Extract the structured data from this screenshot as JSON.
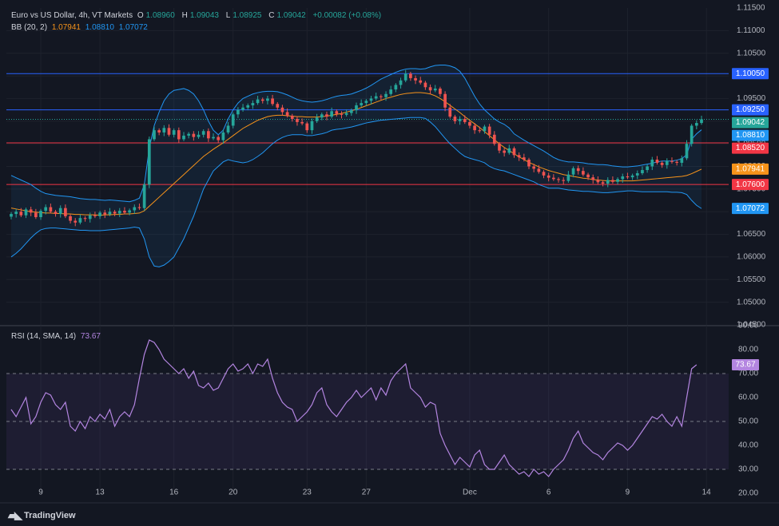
{
  "header": {
    "symbol": "Euro vs US Dollar, 4h, VT Markets",
    "o_label": "O",
    "o_value": "1.08960",
    "h_label": "H",
    "h_value": "1.09043",
    "l_label": "L",
    "l_value": "1.08925",
    "c_label": "C",
    "c_value": "1.09042",
    "change": "+0.00082 (+0.08%)"
  },
  "bb_legend": {
    "name": "BB (20, 2)",
    "basis": "1.07941",
    "upper": "1.08810",
    "lower": "1.07072"
  },
  "rsi_legend": {
    "name": "RSI (14, SMA, 14)",
    "value": "73.67"
  },
  "brand": "TradingView",
  "colors": {
    "bg": "#131722",
    "up": "#26a69a",
    "down": "#ef5350",
    "basis": "#f7931a",
    "band": "#2196f3",
    "rsi": "#b385e0",
    "hline_blue": "#2962ff",
    "hline_red": "#f23645"
  },
  "chart_data": [
    {
      "type": "candlestick",
      "ylim": [
        1.045,
        1.115
      ],
      "y_ticks": [
        "1.11500",
        "1.11000",
        "1.10500",
        "1.10000",
        "1.09500",
        "1.09000",
        "1.08500",
        "1.08000",
        "1.07500",
        "1.07000",
        "1.06500",
        "1.06000",
        "1.05500",
        "1.05000",
        "1.04500"
      ],
      "x_ticks": [
        {
          "label": "9",
          "i": 6
        },
        {
          "label": "13",
          "i": 18
        },
        {
          "label": "16",
          "i": 33
        },
        {
          "label": "20",
          "i": 45
        },
        {
          "label": "23",
          "i": 60
        },
        {
          "label": "27",
          "i": 72
        },
        {
          "label": "Dec",
          "i": 93
        },
        {
          "label": "6",
          "i": 109
        },
        {
          "label": "9",
          "i": 125
        },
        {
          "label": "14",
          "i": 141
        }
      ],
      "horizontal_lines": [
        {
          "value": 1.1005,
          "label": "1.10050",
          "color": "#2962ff"
        },
        {
          "value": 1.0925,
          "label": "1.09250",
          "color": "#2962ff"
        },
        {
          "value": 1.0852,
          "label": "1.08520",
          "color": "#f23645"
        },
        {
          "value": 1.076,
          "label": "1.07600",
          "color": "#f23645"
        }
      ],
      "price_labels": [
        {
          "value": 1.1005,
          "text": "1.10050",
          "bg": "#2962ff",
          "order": 0
        },
        {
          "value": 1.0925,
          "text": "1.09250",
          "bg": "#2962ff",
          "order": 1
        },
        {
          "value": 1.09042,
          "text": "1.09042",
          "bg": "#26a69a",
          "order": 2
        },
        {
          "value": 1.0881,
          "text": "1.08810",
          "bg": "#2196f3",
          "order": 3
        },
        {
          "value": 1.0852,
          "text": "1.08520",
          "bg": "#f23645",
          "order": 4
        },
        {
          "value": 1.07941,
          "text": "1.07941",
          "bg": "#f7931a",
          "order": 5
        },
        {
          "value": 1.076,
          "text": "1.07600",
          "bg": "#f23645",
          "order": 6
        },
        {
          "value": 1.07072,
          "text": "1.07072",
          "bg": "#2196f3",
          "order": 7
        }
      ],
      "closes": [
        1.0695,
        1.07,
        1.0692,
        1.0705,
        1.0698,
        1.0688,
        1.0702,
        1.071,
        1.07,
        1.0695,
        1.0708,
        1.069,
        1.068,
        1.0676,
        1.0686,
        1.0684,
        1.0692,
        1.069,
        1.0698,
        1.0694,
        1.07,
        1.0696,
        1.0702,
        1.0698,
        1.0703,
        1.071,
        1.0708,
        1.076,
        1.086,
        1.088,
        1.0875,
        1.0885,
        1.087,
        1.088,
        1.086,
        1.0868,
        1.0872,
        1.0865,
        1.087,
        1.0878,
        1.0862,
        1.0865,
        1.0858,
        1.0875,
        1.089,
        1.0915,
        1.0925,
        1.093,
        1.0935,
        1.094,
        1.0948,
        1.0945,
        1.095,
        1.0938,
        1.093,
        1.092,
        1.0912,
        1.0905,
        1.0898,
        1.0895,
        1.088,
        1.09,
        1.0908,
        1.0915,
        1.091,
        1.0922,
        1.0916,
        1.0914,
        1.0918,
        1.0924,
        1.0935,
        1.094,
        1.0945,
        1.095,
        1.0955,
        1.0953,
        1.096,
        1.097,
        1.098,
        1.099,
        1.1005,
        1.0995,
        1.099,
        1.0985,
        1.0975,
        1.0968,
        1.0972,
        1.096,
        1.093,
        1.091,
        1.09,
        1.0905,
        1.0898,
        1.089,
        1.088,
        1.0878,
        1.0888,
        1.087,
        1.085,
        1.0835,
        1.083,
        1.084,
        1.0825,
        1.082,
        1.0815,
        1.08,
        1.0795,
        1.0788,
        1.078,
        1.0775,
        1.0772,
        1.077,
        1.0768,
        1.0782,
        1.0796,
        1.079,
        1.0782,
        1.0776,
        1.077,
        1.0765,
        1.0762,
        1.077,
        1.0766,
        1.0772,
        1.0778,
        1.0776,
        1.078,
        1.0785,
        1.0792,
        1.08,
        1.0815,
        1.0808,
        1.0803,
        1.0812,
        1.081,
        1.0808,
        1.0818,
        1.085,
        1.089,
        1.0896,
        1.0904
      ],
      "bb_upper": [
        1.078,
        1.0775,
        1.077,
        1.0765,
        1.076,
        1.0752,
        1.0745,
        1.074,
        1.0738,
        1.0736,
        1.0735,
        1.0734,
        1.0733,
        1.0731,
        1.0729,
        1.0728,
        1.0727,
        1.0727,
        1.0726,
        1.0725,
        1.0726,
        1.0725,
        1.0724,
        1.0723,
        1.0722,
        1.0725,
        1.073,
        1.076,
        1.084,
        1.089,
        1.092,
        1.0945,
        1.096,
        1.0968,
        1.097,
        1.0972,
        1.0968,
        1.096,
        1.0945,
        1.0925,
        1.09,
        1.088,
        1.087,
        1.088,
        1.0905,
        1.0925,
        1.094,
        1.095,
        1.0955,
        1.096,
        1.0963,
        1.0965,
        1.0966,
        1.0966,
        1.0965,
        1.0962,
        1.0958,
        1.0953,
        1.0948,
        1.0945,
        1.0943,
        1.0942,
        1.0943,
        1.0945,
        1.0948,
        1.0952,
        1.0955,
        1.0957,
        1.0958,
        1.096,
        1.0964,
        1.0968,
        1.0973,
        1.0979,
        1.0986,
        1.0993,
        1.0998,
        1.1003,
        1.1008,
        1.1012,
        1.1015,
        1.1016,
        1.1016,
        1.1015,
        1.1016,
        1.102,
        1.1023,
        1.1024,
        1.1024,
        1.1022,
        1.1018,
        1.101,
        1.0995,
        1.0975,
        1.0955,
        1.0938,
        1.0925,
        1.0915,
        1.0905,
        1.0898,
        1.0893,
        1.0885,
        1.0872,
        1.0865,
        1.0858,
        1.0852,
        1.0846,
        1.084,
        1.0834,
        1.0827,
        1.082,
        1.0815,
        1.0812,
        1.081,
        1.081,
        1.0809,
        1.0808,
        1.0806,
        1.0805,
        1.0804,
        1.0804,
        1.0803,
        1.0801,
        1.08,
        1.0799,
        1.0799,
        1.08,
        1.0801,
        1.0803,
        1.0805,
        1.0807,
        1.081,
        1.0812,
        1.0812,
        1.0812,
        1.0814,
        1.0817,
        1.0826,
        1.086,
        1.0872,
        1.0881
      ],
      "bb_basis": [
        1.0708,
        1.0706,
        1.0704,
        1.0702,
        1.07,
        1.0699,
        1.0698,
        1.0697,
        1.0697,
        1.0696,
        1.0696,
        1.0695,
        1.0695,
        1.0694,
        1.0694,
        1.0693,
        1.0693,
        1.0693,
        1.0692,
        1.0693,
        1.0693,
        1.0694,
        1.0694,
        1.0695,
        1.0695,
        1.0696,
        1.0697,
        1.0702,
        1.0712,
        1.0722,
        1.0732,
        1.0742,
        1.0752,
        1.0762,
        1.0772,
        1.0782,
        1.0792,
        1.0802,
        1.0812,
        1.0822,
        1.083,
        1.0838,
        1.0845,
        1.0852,
        1.086,
        1.0868,
        1.0876,
        1.0884,
        1.089,
        1.0896,
        1.0902,
        1.0906,
        1.091,
        1.0912,
        1.0913,
        1.0913,
        1.0912,
        1.0911,
        1.091,
        1.091,
        1.0909,
        1.0909,
        1.0909,
        1.091,
        1.0911,
        1.0913,
        1.0915,
        1.0917,
        1.092,
        1.0923,
        1.0926,
        1.093,
        1.0934,
        1.0938,
        1.0942,
        1.0946,
        1.095,
        1.0953,
        1.0956,
        1.0959,
        1.0961,
        1.0962,
        1.0963,
        1.0963,
        1.0962,
        1.096,
        1.0956,
        1.095,
        1.0943,
        1.0935,
        1.0927,
        1.0919,
        1.091,
        1.0902,
        1.0894,
        1.0886,
        1.0877,
        1.0868,
        1.0859,
        1.085,
        1.0842,
        1.0835,
        1.0828,
        1.0821,
        1.0815,
        1.0809,
        1.0804,
        1.0799,
        1.0795,
        1.0791,
        1.0788,
        1.0785,
        1.0782,
        1.078,
        1.0778,
        1.0776,
        1.0774,
        1.0773,
        1.0771,
        1.077,
        1.0769,
        1.0768,
        1.0768,
        1.0768,
        1.0768,
        1.0768,
        1.0768,
        1.0769,
        1.077,
        1.0771,
        1.0772,
        1.0773,
        1.0774,
        1.0775,
        1.0776,
        1.0777,
        1.0778,
        1.078,
        1.0784,
        1.0789,
        1.0794
      ],
      "bb_lower": [
        1.06,
        1.0608,
        1.0618,
        1.063,
        1.0642,
        1.0652,
        1.066,
        1.0663,
        1.0664,
        1.0664,
        1.0663,
        1.0662,
        1.0661,
        1.066,
        1.0659,
        1.0659,
        1.0658,
        1.0658,
        1.0658,
        1.0659,
        1.066,
        1.0661,
        1.0662,
        1.0663,
        1.0664,
        1.0666,
        1.0664,
        1.064,
        1.06,
        1.058,
        1.0578,
        1.0582,
        1.059,
        1.06,
        1.062,
        1.064,
        1.0665,
        1.069,
        1.072,
        1.075,
        1.077,
        1.079,
        1.08,
        1.081,
        1.0815,
        1.0812,
        1.081,
        1.0808,
        1.081,
        1.0815,
        1.0822,
        1.083,
        1.084,
        1.085,
        1.0858,
        1.0864,
        1.0868,
        1.087,
        1.087,
        1.087,
        1.0868,
        1.0868,
        1.087,
        1.0872,
        1.0875,
        1.088,
        1.0882,
        1.0883,
        1.0885,
        1.0887,
        1.089,
        1.0893,
        1.0896,
        1.0898,
        1.09,
        1.0902,
        1.0903,
        1.0904,
        1.0905,
        1.0906,
        1.0907,
        1.0908,
        1.0908,
        1.0908,
        1.0906,
        1.0898,
        1.0888,
        1.0875,
        1.0862,
        1.085,
        1.084,
        1.083,
        1.0822,
        1.0818,
        1.0815,
        1.0812,
        1.0808,
        1.08,
        1.0795,
        1.0792,
        1.079,
        1.0786,
        1.0782,
        1.0778,
        1.0774,
        1.077,
        1.0766,
        1.076,
        1.0756,
        1.0752,
        1.0752,
        1.0752,
        1.075,
        1.0748,
        1.0747,
        1.0746,
        1.0745,
        1.0745,
        1.0744,
        1.0743,
        1.0742,
        1.0742,
        1.0743,
        1.0744,
        1.0745,
        1.0746,
        1.0746,
        1.0745,
        1.0744,
        1.0744,
        1.0744,
        1.0744,
        1.0744,
        1.0744,
        1.0743,
        1.0743,
        1.0742,
        1.0738,
        1.0725,
        1.0714,
        1.0707
      ]
    },
    {
      "type": "line",
      "name": "RSI",
      "ylim": [
        20,
        90
      ],
      "y_ticks": [
        "90.00",
        "80.00",
        "70.00",
        "60.00",
        "50.00",
        "40.00",
        "30.00",
        "20.00"
      ],
      "levels": [
        70,
        50,
        30
      ],
      "values": [
        55,
        52,
        56,
        60,
        49,
        52,
        58,
        62,
        61,
        57,
        55,
        58,
        48,
        46,
        50,
        47,
        52,
        50,
        53,
        51,
        55,
        48,
        52,
        54,
        52,
        57,
        68,
        78,
        84,
        83,
        80,
        76,
        74,
        72,
        70,
        72,
        68,
        71,
        65,
        64,
        66,
        63,
        64,
        68,
        72,
        74,
        71,
        72,
        74,
        70,
        74,
        73,
        76,
        68,
        62,
        58,
        56,
        55,
        50,
        52,
        54,
        57,
        62,
        64,
        57,
        54,
        52,
        55,
        58,
        60,
        63,
        60,
        62,
        64,
        59,
        64,
        61,
        67,
        70,
        72,
        74,
        64,
        62,
        60,
        56,
        58,
        57,
        45,
        40,
        36,
        32,
        35,
        33,
        31,
        36,
        38,
        32,
        30,
        30,
        33,
        36,
        32,
        30,
        28,
        29,
        27,
        30,
        28,
        29,
        27,
        30,
        32,
        34,
        38,
        43,
        46,
        41,
        39,
        37,
        36,
        34,
        37,
        39,
        41,
        40,
        38,
        40,
        43,
        46,
        49,
        52,
        51,
        53,
        50,
        48,
        52,
        48,
        60,
        72,
        73.67
      ],
      "current_value": 73.67
    }
  ]
}
